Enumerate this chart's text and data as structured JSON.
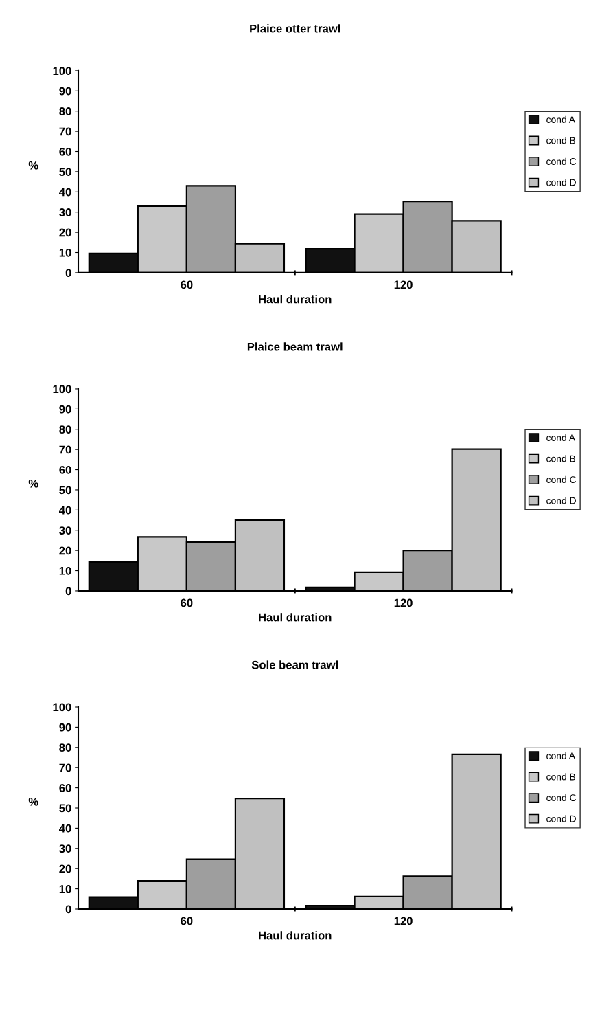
{
  "chart_data": [
    {
      "type": "bar",
      "title": "Plaice otter trawl",
      "xlabel": "Haul duration",
      "ylabel": "%",
      "categories": [
        "60",
        "120"
      ],
      "ylim": [
        0,
        100
      ],
      "yticks": [
        0,
        10,
        20,
        30,
        40,
        50,
        60,
        70,
        80,
        90,
        100
      ],
      "grid": false,
      "legend": "right",
      "series": [
        {
          "name": "cond A",
          "color": "#111111",
          "values": [
            9.5,
            11.8
          ]
        },
        {
          "name": "cond B",
          "color": "#c8c8c8",
          "values": [
            33,
            29
          ]
        },
        {
          "name": "cond C",
          "color": "#9e9e9e",
          "values": [
            43,
            35.3
          ]
        },
        {
          "name": "cond D",
          "color": "#c0c0c0",
          "values": [
            14.4,
            25.7
          ]
        }
      ]
    },
    {
      "type": "bar",
      "title": "Plaice beam trawl",
      "xlabel": "Haul duration",
      "ylabel": "%",
      "categories": [
        "60",
        "120"
      ],
      "ylim": [
        0,
        100
      ],
      "yticks": [
        0,
        10,
        20,
        30,
        40,
        50,
        60,
        70,
        80,
        90,
        100
      ],
      "grid": false,
      "legend": "right",
      "series": [
        {
          "name": "cond A",
          "color": "#111111",
          "values": [
            14.2,
            1.7
          ]
        },
        {
          "name": "cond B",
          "color": "#c8c8c8",
          "values": [
            26.7,
            9.2
          ]
        },
        {
          "name": "cond C",
          "color": "#9e9e9e",
          "values": [
            24.2,
            20
          ]
        },
        {
          "name": "cond D",
          "color": "#c0c0c0",
          "values": [
            35,
            70.2
          ]
        }
      ]
    },
    {
      "type": "bar",
      "title": "Sole beam trawl",
      "xlabel": "Haul duration",
      "ylabel": "%",
      "categories": [
        "60",
        "120"
      ],
      "ylim": [
        0,
        100
      ],
      "yticks": [
        0,
        10,
        20,
        30,
        40,
        50,
        60,
        70,
        80,
        90,
        100
      ],
      "grid": false,
      "legend": "right",
      "series": [
        {
          "name": "cond A",
          "color": "#111111",
          "values": [
            5.9,
            1.7
          ]
        },
        {
          "name": "cond B",
          "color": "#c8c8c8",
          "values": [
            13.9,
            6.2
          ]
        },
        {
          "name": "cond C",
          "color": "#9e9e9e",
          "values": [
            24.6,
            16.2
          ]
        },
        {
          "name": "cond D",
          "color": "#c0c0c0",
          "values": [
            54.7,
            76.6
          ]
        }
      ]
    }
  ]
}
